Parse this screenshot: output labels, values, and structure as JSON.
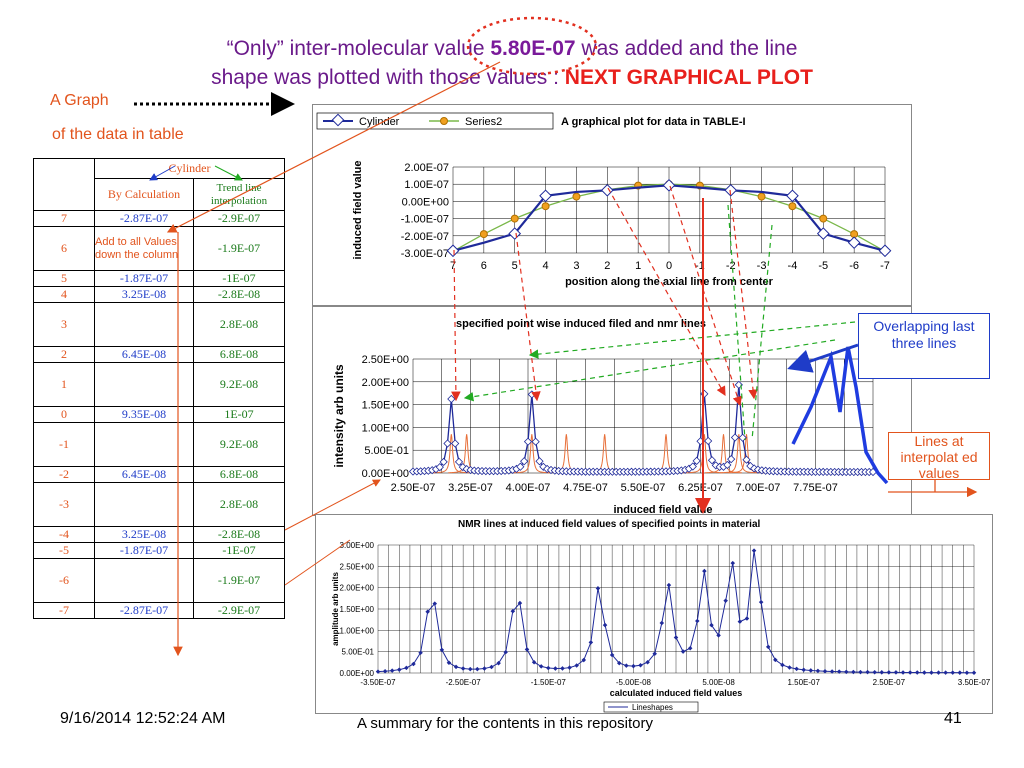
{
  "title": {
    "part1": "“Only” inter-molecular value ",
    "value": "5.80E-07",
    "part2": " was added and the line",
    "line2a": "shape was plotted with those values : ",
    "line2b": "NEXT GRAPHICAL PLOT"
  },
  "labels": {
    "graph": "A Graph",
    "table": "of the data in table"
  },
  "table": {
    "group_header": "Cylinder",
    "col_calc": "By Calculation",
    "col_trend": "Trend line interpolation",
    "note": "Add to all Values down the column",
    "rows": [
      {
        "pos": "7",
        "calc": "-2.87E-07",
        "trend": "-2.9E-07"
      },
      {
        "pos": "6",
        "calc": "",
        "trend": "-1.9E-07"
      },
      {
        "pos": "5",
        "calc": "-1.87E-07",
        "trend": "-1E-07"
      },
      {
        "pos": "4",
        "calc": "3.25E-08",
        "trend": "-2.8E-08"
      },
      {
        "pos": "3",
        "calc": "",
        "trend": "2.8E-08"
      },
      {
        "pos": "2",
        "calc": "6.45E-08",
        "trend": "6.8E-08"
      },
      {
        "pos": "1",
        "calc": "",
        "trend": "9.2E-08"
      },
      {
        "pos": "0",
        "calc": "9.35E-08",
        "trend": "1E-07"
      },
      {
        "pos": "-1",
        "calc": "",
        "trend": "9.2E-08"
      },
      {
        "pos": "-2",
        "calc": "6.45E-08",
        "trend": "6.8E-08"
      },
      {
        "pos": "-3",
        "calc": "",
        "trend": "2.8E-08"
      },
      {
        "pos": "-4",
        "calc": "3.25E-08",
        "trend": "-2.8E-08"
      },
      {
        "pos": "-5",
        "calc": "-1.87E-07",
        "trend": "-1E-07"
      },
      {
        "pos": "-6",
        "calc": "",
        "trend": "-1.9E-07"
      },
      {
        "pos": "-7",
        "calc": "-2.87E-07",
        "trend": "-2.9E-07"
      }
    ]
  },
  "callouts": {
    "overlap": "Overlapping last three lines",
    "interp": "Lines at interpolat ed values"
  },
  "footer": {
    "date": "9/16/2014 12:52:24 AM",
    "summary": "A summary for the contents in this repository",
    "page": "41"
  },
  "colors": {
    "series_blue": "#1f2a9a",
    "series_orange": "#f0a020",
    "accent_red": "#e2541d"
  },
  "chart_data": [
    {
      "type": "line",
      "title": "A graphical plot for data in TABLE-I",
      "xlabel": "position along the axial line from center",
      "ylabel": "induced field value",
      "x": [
        7,
        6,
        5,
        4,
        3,
        2,
        1,
        0,
        -1,
        -2,
        -3,
        -4,
        -5,
        -6,
        -7
      ],
      "ylim": [
        -3e-07,
        2e-07
      ],
      "yticks": [
        "2.00E-07",
        "1.00E-07",
        "0.00E+00",
        "-1.00E-07",
        "-2.00E-07",
        "-3.00E-07"
      ],
      "grid": true,
      "legend": "top-left",
      "series": [
        {
          "name": "Cylinder",
          "values": [
            -2.87e-07,
            -2.4e-07,
            -1.87e-07,
            3.25e-08,
            5.5e-08,
            6.45e-08,
            8e-08,
            9.35e-08,
            8e-08,
            6.45e-08,
            5.5e-08,
            3.25e-08,
            -1.87e-07,
            -2.4e-07,
            -2.87e-07
          ]
        },
        {
          "name": "Series2",
          "values": [
            -2.9e-07,
            -1.9e-07,
            -1e-07,
            -2.8e-08,
            2.8e-08,
            6.8e-08,
            9.2e-08,
            1e-07,
            9.2e-08,
            6.8e-08,
            2.8e-08,
            -2.8e-08,
            -1e-07,
            -1.9e-07,
            -2.9e-07
          ]
        }
      ]
    },
    {
      "type": "line",
      "title": "specified point wise induced filed and nmr lines",
      "xlabel": "induced field value",
      "ylabel": "intensity arb units",
      "xlim": [
        2.5e-07,
        8.5e-07
      ],
      "xticks": [
        "2.50E-07",
        "3.25E-07",
        "4.00E-07",
        "4.75E-07",
        "5.50E-07",
        "6.25E-07",
        "7.00E-07",
        "7.75E-07"
      ],
      "ylim": [
        0,
        2.5
      ],
      "yticks": [
        "2.50E+00",
        "2.00E+00",
        "1.50E+00",
        "1.00E+00",
        "5.00E-01",
        "0.00E+00"
      ],
      "grid": true,
      "peaks_calc": [
        {
          "x": 3e-07,
          "y": 1.6
        },
        {
          "x": 4.05e-07,
          "y": 1.7
        },
        {
          "x": 6.3e-07,
          "y": 1.7
        },
        {
          "x": 6.75e-07,
          "y": 1.9
        }
      ],
      "peaks_interp": [
        3e-07,
        3.2e-07,
        4.05e-07,
        4.5e-07,
        5e-07,
        5.8e-07,
        6.3e-07,
        6.55e-07,
        6.75e-07,
        6.85e-07
      ]
    },
    {
      "type": "line",
      "title": "NMR lines at induced field values of specified points in material",
      "xlabel": "calculated induced field values",
      "ylabel": "amplitude arb units",
      "xlim": [
        -3.5e-07,
        3.5e-07
      ],
      "xticks": [
        "-3.50E-07",
        "-2.50E-07",
        "-1.50E-07",
        "-5.00E-08",
        "5.00E-08",
        "1.50E-07",
        "2.50E-07",
        "3.50E-07"
      ],
      "ylim": [
        0,
        3.0
      ],
      "yticks": [
        "3.00E+00",
        "2.50E+00",
        "2.00E+00",
        "1.50E+00",
        "1.00E+00",
        "5.00E-01",
        "0.00E+00"
      ],
      "grid": true,
      "legend": "bottom",
      "series": [
        {
          "name": "Lineshapes",
          "peaks": [
            {
              "x": -2.87e-07,
              "y": 2.05
            },
            {
              "x": -1.87e-07,
              "y": 2.05
            },
            {
              "x": -9e-08,
              "y": 2.05
            },
            {
              "x": -1e-08,
              "y": 2.05
            },
            {
              "x": 3.25e-08,
              "y": 2.2
            },
            {
              "x": 6.45e-08,
              "y": 2.5
            },
            {
              "x": 9.35e-08,
              "y": 2.85
            }
          ]
        }
      ]
    }
  ]
}
